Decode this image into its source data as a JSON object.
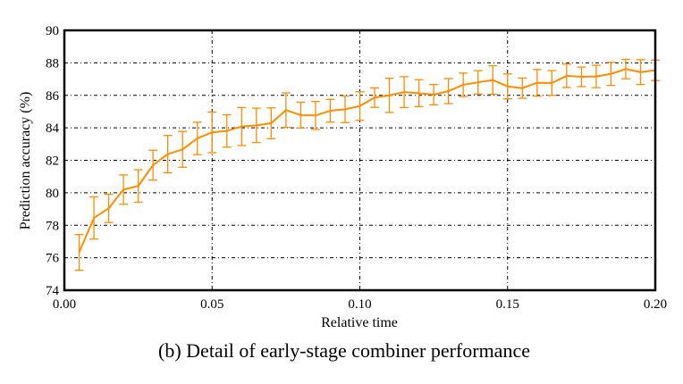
{
  "chart_data": {
    "type": "line",
    "caption": "(b) Detail of early-stage combiner performance",
    "xlabel": "Relative time",
    "ylabel": "Prediction accuracy (%)",
    "xlim": [
      0,
      0.2
    ],
    "ylim": [
      74,
      90
    ],
    "xticks": [
      "0.00",
      "0.05",
      "0.10",
      "0.15",
      "0.20"
    ],
    "yticks": [
      "74",
      "76",
      "78",
      "80",
      "82",
      "84",
      "86",
      "88",
      "90"
    ],
    "grid": true,
    "legend": "none",
    "color": "#ff8c00",
    "series": [
      {
        "x": [
          0.005,
          0.01,
          0.015,
          0.02,
          0.025,
          0.03,
          0.035,
          0.04,
          0.045,
          0.05,
          0.055,
          0.06,
          0.065,
          0.07,
          0.075,
          0.08,
          0.085,
          0.09,
          0.095,
          0.1,
          0.105,
          0.11,
          0.115,
          0.12,
          0.125,
          0.13,
          0.135,
          0.14,
          0.145,
          0.15,
          0.155,
          0.16,
          0.165,
          0.17,
          0.175,
          0.18,
          0.185,
          0.19,
          0.195,
          0.2
        ],
        "y": [
          76.33,
          78.45,
          79.04,
          80.2,
          80.42,
          81.7,
          82.38,
          82.67,
          83.35,
          83.72,
          83.81,
          84.08,
          84.15,
          84.28,
          85.09,
          84.78,
          84.76,
          85.05,
          85.14,
          85.34,
          85.86,
          86.0,
          86.2,
          86.13,
          86.04,
          86.26,
          86.65,
          86.8,
          86.94,
          86.55,
          86.44,
          86.77,
          86.76,
          87.2,
          87.14,
          87.16,
          87.32,
          87.62,
          87.43,
          87.54
        ],
        "error": [
          1.1,
          1.3,
          0.87,
          0.9,
          1.0,
          0.92,
          1.15,
          1.1,
          1.0,
          1.25,
          1.0,
          1.17,
          1.06,
          0.95,
          1.06,
          0.8,
          0.86,
          0.7,
          0.82,
          0.88,
          0.6,
          1.05,
          0.95,
          0.83,
          0.63,
          0.77,
          0.72,
          0.72,
          0.88,
          0.77,
          0.62,
          0.82,
          0.76,
          0.72,
          0.6,
          0.69,
          0.71,
          0.6,
          0.76,
          0.63
        ]
      }
    ]
  }
}
